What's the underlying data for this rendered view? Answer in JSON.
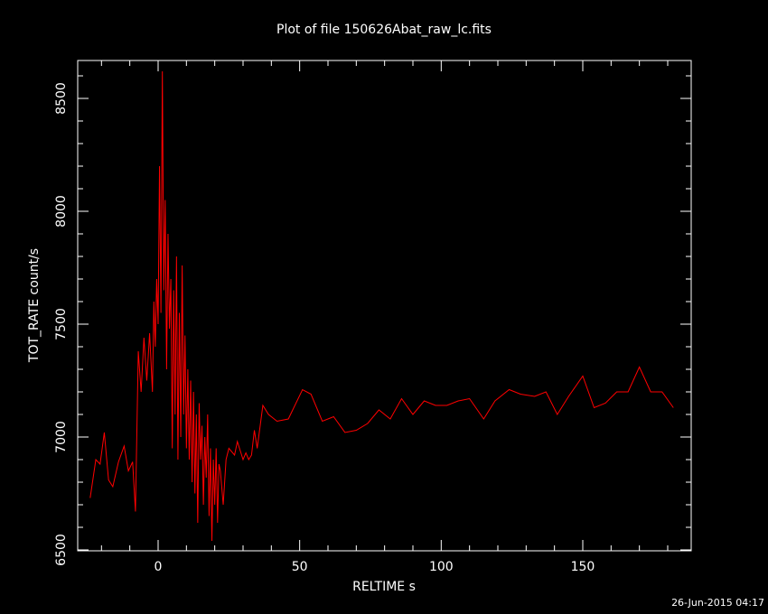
{
  "chart_data": {
    "type": "line",
    "title": "Plot of file 150626Abat_raw_lc.fits",
    "x_label": "RELTIME  s",
    "y_label": "TOT_RATE  count/s",
    "footer": "26-Jun-2015 04:17",
    "xlim": [
      -28.4,
      188.3
    ],
    "ylim": [
      6496,
      8668
    ],
    "xticks": [
      0,
      50,
      100,
      150
    ],
    "yticks": [
      6500,
      7000,
      7500,
      8000,
      8500
    ],
    "xminorticks": [
      -20,
      -10,
      10,
      20,
      30,
      40,
      60,
      70,
      80,
      90,
      110,
      120,
      130,
      140,
      160,
      170,
      180
    ],
    "yminorticks": [
      6600,
      6700,
      6800,
      6900,
      7100,
      7200,
      7300,
      7400,
      7600,
      7700,
      7800,
      7900,
      8100,
      8200,
      8300,
      8400,
      8600
    ],
    "x": [
      -24,
      -22,
      -20.5,
      -19,
      -17.5,
      -16,
      -14,
      -12,
      -10.5,
      -9,
      -8,
      -7,
      -6,
      -5,
      -4,
      -3,
      -2,
      -1.5,
      -1,
      -0.5,
      0,
      0.5,
      1,
      1.5,
      2,
      2.5,
      3,
      3.5,
      4,
      4.5,
      5,
      5.5,
      6,
      6.5,
      7,
      7.5,
      8,
      8.5,
      9,
      9.5,
      10,
      10.5,
      11,
      11.5,
      12,
      12.5,
      13,
      13.5,
      14,
      14.5,
      15,
      15.5,
      16,
      16.5,
      17,
      17.5,
      18,
      18.5,
      19,
      19.5,
      20,
      20.5,
      21,
      21.5,
      22,
      23,
      24,
      25,
      27,
      28,
      30,
      31,
      32,
      33,
      34,
      35,
      37,
      39,
      42,
      46,
      51,
      54,
      58,
      62,
      66,
      70,
      74,
      78,
      82,
      86,
      90,
      94,
      98,
      102,
      106,
      110,
      115,
      119,
      124,
      128,
      133,
      137,
      141,
      145,
      150,
      154,
      158,
      162,
      166,
      170,
      174,
      178,
      182
    ],
    "series": [
      {
        "color": "#ff0000",
        "values": [
          6730,
          6900,
          6880,
          7020,
          6810,
          6780,
          6890,
          6960,
          6850,
          6890,
          6670,
          7380,
          7200,
          7440,
          7250,
          7460,
          7200,
          7600,
          7400,
          7700,
          7500,
          8200,
          7550,
          8620,
          7650,
          8050,
          7300,
          7900,
          7480,
          7700,
          6950,
          7650,
          7100,
          7800,
          6900,
          7550,
          7000,
          7760,
          7100,
          7450,
          6950,
          7300,
          6900,
          7250,
          6800,
          7200,
          6750,
          7100,
          6620,
          7150,
          6900,
          7050,
          6700,
          7000,
          6820,
          7100,
          6650,
          6950,
          6540,
          6900,
          6700,
          6950,
          6620,
          6880,
          6850,
          6700,
          6900,
          6950,
          6920,
          6980,
          6900,
          6930,
          6900,
          6920,
          7030,
          6950,
          7140,
          7100,
          7070,
          7080,
          7210,
          7190,
          7070,
          7090,
          7020,
          7030,
          7060,
          7120,
          7080,
          7170,
          7100,
          7160,
          7140,
          7140,
          7160,
          7170,
          7080,
          7160,
          7210,
          7190,
          7180,
          7200,
          7100,
          7180,
          7270,
          7130,
          7150,
          7200,
          7200,
          7310,
          7200,
          7200,
          7130
        ]
      }
    ]
  }
}
